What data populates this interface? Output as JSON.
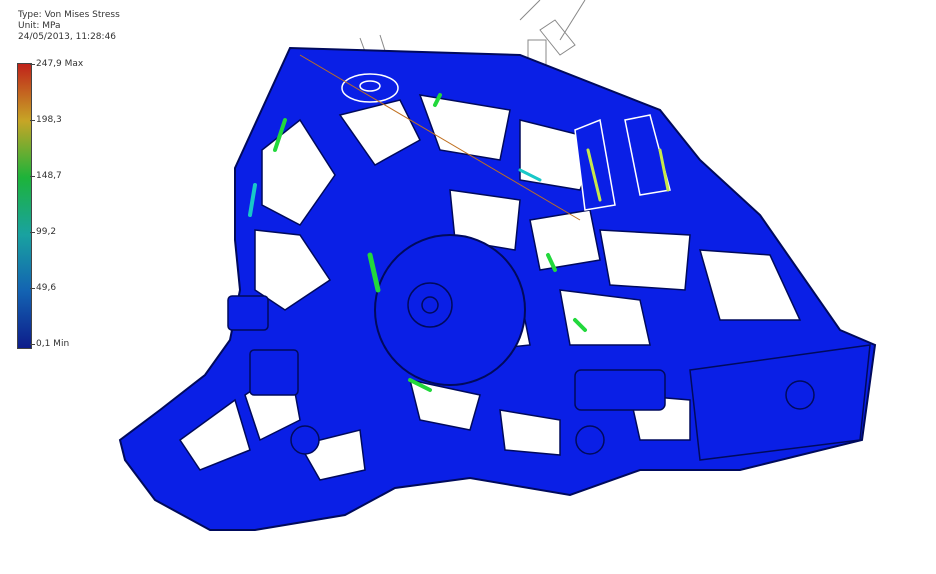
{
  "legend": {
    "type_line": "Type: Von Mises Stress",
    "unit_line": "Unit: MPa",
    "timestamp": "24/05/2013, 11:28:46",
    "colors": [
      "#c0221a",
      "#c7a526",
      "#1db33a",
      "#19a2a0",
      "#1363b2",
      "#0d1c8a"
    ],
    "levels": [
      {
        "label": "247,9 Max",
        "fraction": 1.0
      },
      {
        "label": "198,3",
        "fraction": 0.8
      },
      {
        "label": "148,7",
        "fraction": 0.6
      },
      {
        "label": "99,2",
        "fraction": 0.4
      },
      {
        "label": "49,6",
        "fraction": 0.2
      },
      {
        "label": "0,1 Min",
        "fraction": 0.0
      }
    ]
  },
  "model": {
    "base_color": "#0a1fe6",
    "edge_color": "#000a5c",
    "hotspot_colors": [
      "#22d83c",
      "#c8e84a",
      "#18c8c8"
    ]
  }
}
